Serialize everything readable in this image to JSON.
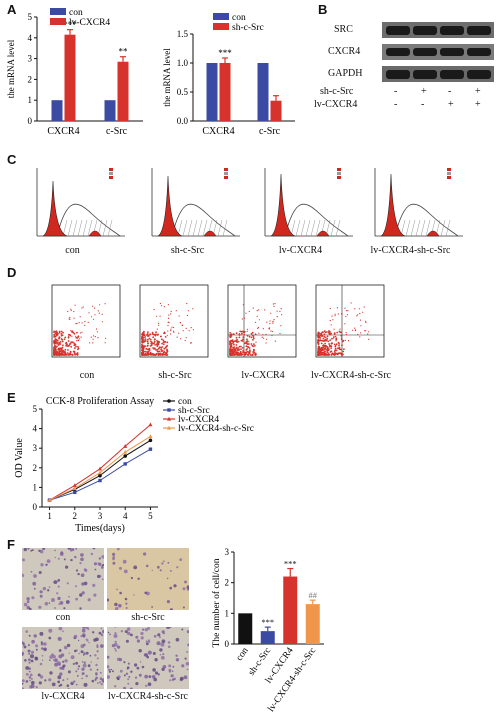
{
  "panel_labels": {
    "a": "A",
    "b": "B",
    "c": "C",
    "d": "D",
    "e": "E",
    "f": "F"
  },
  "colors": {
    "blue": "#3b4ba3",
    "red": "#d8322c",
    "black": "#111111",
    "orange": "#f0964a",
    "hist_red": "#d0281e",
    "dot_red": "#d8322c"
  },
  "chart_data": [
    {
      "id": "A1",
      "type": "bar",
      "xlabel": "",
      "ylabel": "the mRNA level",
      "ylim": [
        0,
        5
      ],
      "yticks": [
        "0",
        "1",
        "2",
        "3",
        "4",
        "5"
      ],
      "categories": [
        "CXCR4",
        "c-Src"
      ],
      "series": [
        {
          "name": "con",
          "values": [
            1,
            1
          ]
        },
        {
          "name": "lv-CXCR4",
          "values": [
            4.15,
            2.85
          ]
        }
      ],
      "annotations": [
        "***",
        "**"
      ]
    },
    {
      "id": "A2",
      "type": "bar",
      "xlabel": "",
      "ylabel": "the mRNA level",
      "ylim": [
        0,
        1.5
      ],
      "yticks": [
        "0.0",
        "0.5",
        "1.0",
        "1.5"
      ],
      "categories": [
        "CXCR4",
        "c-Src"
      ],
      "series": [
        {
          "name": "con",
          "values": [
            1,
            1
          ]
        },
        {
          "name": "sh-c-Src",
          "values": [
            1,
            0.35
          ]
        }
      ],
      "annotations": [
        "***"
      ]
    },
    {
      "id": "E",
      "type": "line",
      "title": "CCK-8 Proliferation Assay",
      "xlabel": "Times(days)",
      "ylabel": "OD Value",
      "x": [
        1,
        2,
        3,
        4,
        5
      ],
      "xticks": [
        "1",
        "2",
        "3",
        "4",
        "5"
      ],
      "ylim": [
        0,
        5
      ],
      "yticks": [
        "0",
        "1",
        "2",
        "3",
        "4",
        "5"
      ],
      "series": [
        {
          "name": "con",
          "values": [
            0.35,
            0.9,
            1.6,
            2.6,
            3.4
          ]
        },
        {
          "name": "sh-c-Src",
          "values": [
            0.35,
            0.75,
            1.35,
            2.2,
            2.95
          ]
        },
        {
          "name": "lv-CXCR4",
          "values": [
            0.35,
            1.1,
            1.95,
            3.1,
            4.2
          ]
        },
        {
          "name": "lv-CXCR4-sh-c-Src",
          "values": [
            0.35,
            0.95,
            1.75,
            2.8,
            3.6
          ]
        }
      ]
    },
    {
      "id": "F",
      "type": "bar",
      "xlabel": "",
      "ylabel": "The number of cell/con",
      "ylim": [
        0,
        3
      ],
      "yticks": [
        "0",
        "1",
        "2",
        "3"
      ],
      "categories": [
        "con",
        "sh-c-Src",
        "lv-CXCR4",
        "lv-CXCR4-sh-c-Src"
      ],
      "values": [
        1.0,
        0.42,
        2.2,
        1.3
      ],
      "annotations": [
        "",
        "***",
        "***",
        "##"
      ]
    }
  ],
  "blot": {
    "rows": [
      "SRC",
      "CXCR4",
      "GAPDH"
    ],
    "conditions": [
      {
        "label": "sh-c-Src",
        "signs": [
          "-",
          "+",
          "-",
          "+"
        ]
      },
      {
        "label": "lv-CXCR4",
        "signs": [
          "-",
          "-",
          "+",
          "+"
        ]
      }
    ]
  },
  "flow_captions": [
    "con",
    "sh-c-Src",
    "lv-CXCR4",
    "lv-CXCR4-sh-c-Src"
  ],
  "dot_captions": [
    "con",
    "sh-c-Src",
    "lv-CXCR4",
    "lv-CXCR4-sh-c-Src"
  ],
  "micro_captions": [
    "con",
    "sh-c-Src",
    "lv-CXCR4",
    "lv-CXCR4-sh-c-Src"
  ]
}
